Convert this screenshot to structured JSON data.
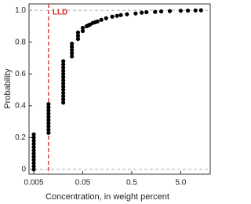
{
  "chart_data": {
    "type": "scatter",
    "xlabel": "Concentration, in weight percent",
    "ylabel": "Probability",
    "annotation": "LLD",
    "lld": 0.01,
    "lld_color": "#d62728",
    "hlines": [
      0,
      1
    ],
    "color": "#000000",
    "xscale": "log",
    "xlim": [
      0.004,
      20
    ],
    "ylim": [
      -0.03,
      1.04
    ],
    "xticks": [
      0.005,
      0.05,
      0.5,
      {
        "value": 5,
        "label": "5.0"
      }
    ],
    "yticks": [
      0,
      0.2,
      0.4,
      0.6,
      0.8,
      {
        "value": 1,
        "label": "1.0"
      }
    ],
    "x": [
      0.005,
      0.005,
      0.005,
      0.005,
      0.005,
      0.005,
      0.005,
      0.005,
      0.005,
      0.005,
      0.005,
      0.005,
      0.01,
      0.01,
      0.01,
      0.01,
      0.01,
      0.01,
      0.01,
      0.01,
      0.01,
      0.01,
      0.02,
      0.02,
      0.02,
      0.02,
      0.02,
      0.02,
      0.02,
      0.02,
      0.02,
      0.02,
      0.02,
      0.02,
      0.02,
      0.02,
      0.03,
      0.03,
      0.03,
      0.03,
      0.03,
      0.04,
      0.04,
      0.04,
      0.05,
      0.05,
      0.06,
      0.065,
      0.07,
      0.08,
      0.09,
      0.1,
      0.12,
      0.15,
      0.2,
      0.25,
      0.3,
      0.4,
      0.6,
      0.8,
      1,
      1.5,
      2,
      3,
      5,
      7,
      10,
      13
    ],
    "y": [
      0,
      0.02,
      0.04,
      0.06,
      0.08,
      0.1,
      0.12,
      0.14,
      0.16,
      0.18,
      0.2,
      0.22,
      0.23,
      0.25,
      0.27,
      0.29,
      0.31,
      0.33,
      0.35,
      0.37,
      0.39,
      0.41,
      0.42,
      0.44,
      0.46,
      0.48,
      0.5,
      0.52,
      0.54,
      0.56,
      0.58,
      0.6,
      0.62,
      0.64,
      0.66,
      0.68,
      0.71,
      0.73,
      0.75,
      0.77,
      0.79,
      0.82,
      0.84,
      0.86,
      0.87,
      0.89,
      0.9,
      0.905,
      0.91,
      0.92,
      0.925,
      0.93,
      0.94,
      0.95,
      0.96,
      0.965,
      0.97,
      0.975,
      0.98,
      0.985,
      0.988,
      0.99,
      0.993,
      0.995,
      0.997,
      0.998,
      0.999,
      1
    ]
  }
}
